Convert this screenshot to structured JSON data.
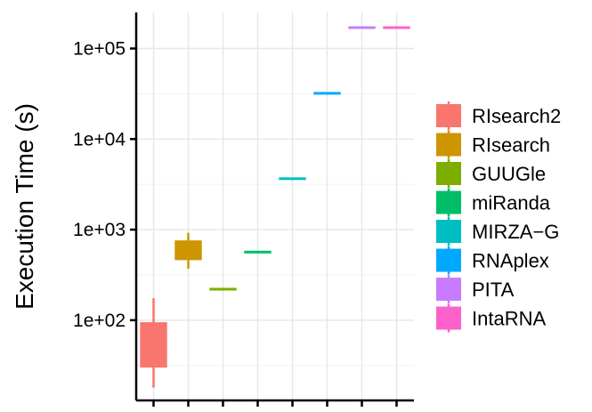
{
  "chart_data": {
    "type": "boxplot",
    "ylabel": "Execution Time (s)",
    "xlabel": "",
    "y_scale": "log10",
    "ylim": [
      13,
      250000
    ],
    "y_ticks": [
      100,
      1000,
      10000,
      100000
    ],
    "y_tick_labels": [
      "1e+02",
      "1e+03",
      "1e+04",
      "1e+05"
    ],
    "grid": true,
    "legend_position": "right",
    "series": [
      {
        "name": "RIsearch2",
        "color": "#F8766D",
        "min": 18,
        "q1": 30,
        "median": 52,
        "q3": 95,
        "max": 175
      },
      {
        "name": "RIsearch",
        "color": "#CD9600",
        "min": 370,
        "q1": 460,
        "median": 580,
        "q3": 760,
        "max": 920
      },
      {
        "name": "GUUGle",
        "color": "#7CAE00",
        "min": 212,
        "q1": 216,
        "median": 220,
        "q3": 224,
        "max": 228
      },
      {
        "name": "miRanda",
        "color": "#00BE67",
        "min": 548,
        "q1": 556,
        "median": 565,
        "q3": 574,
        "max": 582
      },
      {
        "name": "MIRZA−G",
        "color": "#00BFC4",
        "min": 3550,
        "q1": 3600,
        "median": 3650,
        "q3": 3700,
        "max": 3750
      },
      {
        "name": "RNAplex",
        "color": "#00A9FF",
        "min": 31000,
        "q1": 31500,
        "median": 32000,
        "q3": 32500,
        "max": 33000
      },
      {
        "name": "PITA",
        "color": "#C77CFF",
        "min": 166000,
        "q1": 168000,
        "median": 170000,
        "q3": 172000,
        "max": 174000
      },
      {
        "name": "IntaRNA",
        "color": "#FF61CC",
        "min": 166000,
        "q1": 168000,
        "median": 170000,
        "q3": 172000,
        "max": 174000
      }
    ]
  }
}
